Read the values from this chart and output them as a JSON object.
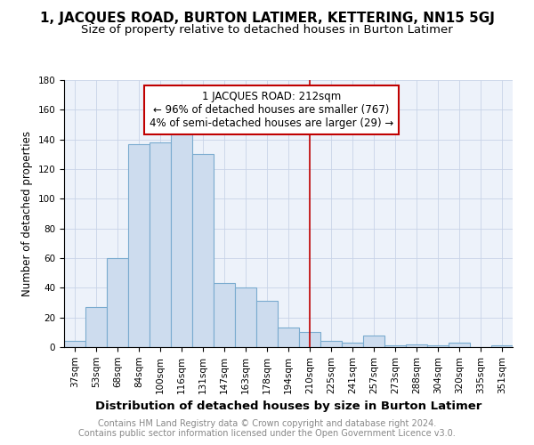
{
  "title": "1, JACQUES ROAD, BURTON LATIMER, KETTERING, NN15 5GJ",
  "subtitle": "Size of property relative to detached houses in Burton Latimer",
  "xlabel": "Distribution of detached houses by size in Burton Latimer",
  "ylabel": "Number of detached properties",
  "footer_line1": "Contains HM Land Registry data © Crown copyright and database right 2024.",
  "footer_line2": "Contains public sector information licensed under the Open Government Licence v3.0.",
  "bar_labels": [
    "37sqm",
    "53sqm",
    "68sqm",
    "84sqm",
    "100sqm",
    "116sqm",
    "131sqm",
    "147sqm",
    "163sqm",
    "178sqm",
    "194sqm",
    "210sqm",
    "225sqm",
    "241sqm",
    "257sqm",
    "273sqm",
    "288sqm",
    "304sqm",
    "320sqm",
    "335sqm",
    "351sqm"
  ],
  "bar_values": [
    4,
    27,
    60,
    137,
    138,
    145,
    130,
    43,
    40,
    31,
    13,
    10,
    4,
    3,
    8,
    1,
    2,
    1,
    3,
    0,
    1
  ],
  "bar_color": "#cddcee",
  "bar_edge_color": "#7aabcf",
  "vline_x_index": 11,
  "vline_color": "#c00000",
  "annotation_text": "1 JACQUES ROAD: 212sqm\n← 96% of detached houses are smaller (767)\n4% of semi-detached houses are larger (29) →",
  "annotation_box_color": "#c00000",
  "ylim": [
    0,
    180
  ],
  "yticks": [
    0,
    20,
    40,
    60,
    80,
    100,
    120,
    140,
    160,
    180
  ],
  "grid_color": "#c8d4e8",
  "background_color": "#edf2fa",
  "title_fontsize": 11,
  "subtitle_fontsize": 9.5,
  "xlabel_fontsize": 9.5,
  "ylabel_fontsize": 8.5,
  "tick_fontsize": 7.5,
  "annotation_fontsize": 8.5,
  "footer_fontsize": 7
}
